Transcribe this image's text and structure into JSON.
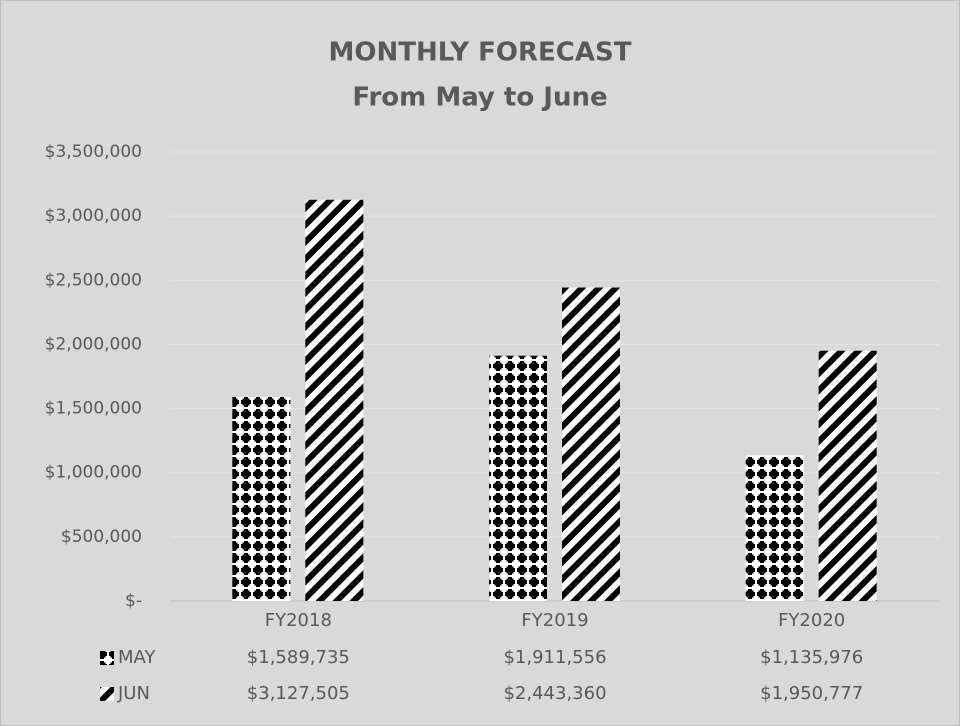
{
  "chart_data": {
    "type": "bar",
    "title": "MONTHLY FORECAST",
    "subtitle": "From May to June",
    "categories": [
      "FY2018",
      "FY2019",
      "FY2020"
    ],
    "series": [
      {
        "name": "MAY",
        "color": "#000000",
        "pattern": "dots",
        "values": [
          1589735,
          1911556,
          1135976
        ],
        "value_labels": [
          "$1,589,735",
          "$1,911,556",
          "$1,135,976"
        ]
      },
      {
        "name": "JUN",
        "color": "#000000",
        "pattern": "stripes",
        "values": [
          3127505,
          2443360,
          1950777
        ],
        "value_labels": [
          "$3,127,505",
          "$2,443,360",
          "$1,950,777"
        ]
      }
    ],
    "ylim": [
      0,
      3500000
    ],
    "yticks": [
      {
        "value": 0,
        "label": "$-"
      },
      {
        "value": 500000,
        "label": "$500,000"
      },
      {
        "value": 1000000,
        "label": "$1,000,000"
      },
      {
        "value": 1500000,
        "label": "$1,500,000"
      },
      {
        "value": 2000000,
        "label": "$2,000,000"
      },
      {
        "value": 2500000,
        "label": "$2,500,000"
      },
      {
        "value": 3000000,
        "label": "$3,000,000"
      },
      {
        "value": 3500000,
        "label": "$3,500,000"
      }
    ],
    "grid": true,
    "data_table": true
  }
}
